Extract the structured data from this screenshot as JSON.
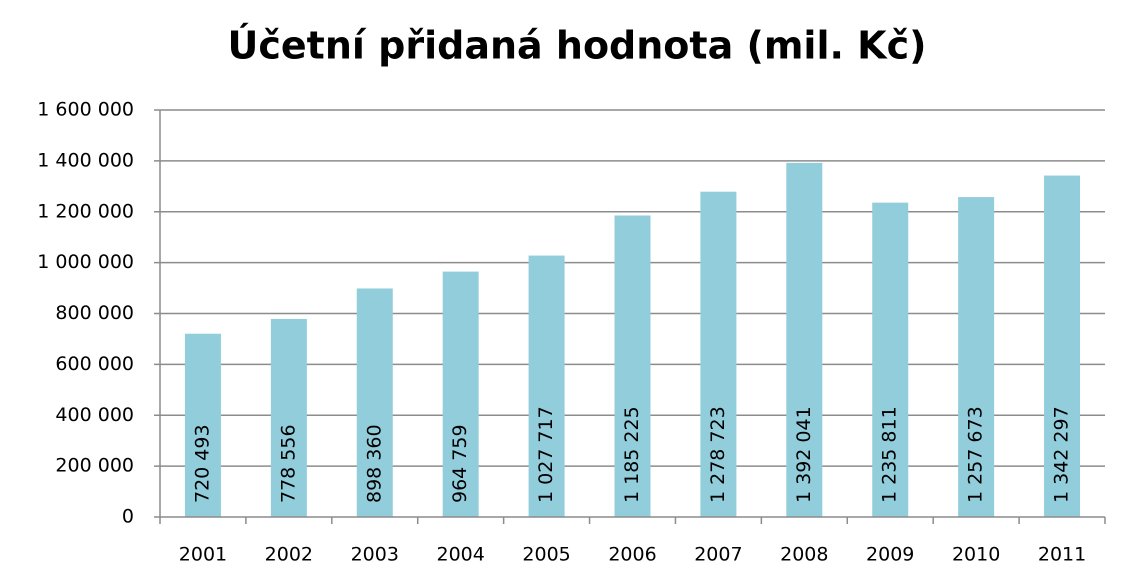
{
  "chart_data": {
    "type": "bar",
    "title": "Účetní přidaná hodnota (mil. Kč)",
    "categories": [
      "2001",
      "2002",
      "2003",
      "2004",
      "2005",
      "2006",
      "2007",
      "2008",
      "2009",
      "2010",
      "2011"
    ],
    "values": [
      720493,
      778556,
      898360,
      964759,
      1027717,
      1185225,
      1278723,
      1392041,
      1235811,
      1257673,
      1342297
    ],
    "value_labels": [
      "720 493",
      "778 556",
      "898 360",
      "964 759",
      "1 027 717",
      "1 185 225",
      "1 278 723",
      "1 392 041",
      "1 235 811",
      "1 257 673",
      "1 342 297"
    ],
    "color": "#92cddc",
    "ylim": [
      0,
      1600000
    ],
    "yticks": [
      0,
      {
        "value": 200000,
        "label": "200 000"
      },
      {
        "value": 400000,
        "label": "400 000"
      },
      {
        "value": 600000,
        "label": "600 000"
      },
      {
        "value": 800000,
        "label": "800 000"
      },
      {
        "value": 1000000,
        "label": "1 000 000"
      },
      {
        "value": 1200000,
        "label": "1 200 000"
      },
      {
        "value": 1400000,
        "label": "1 400 000"
      },
      {
        "value": 1600000,
        "label": "1 600 000"
      }
    ],
    "grid": true
  }
}
